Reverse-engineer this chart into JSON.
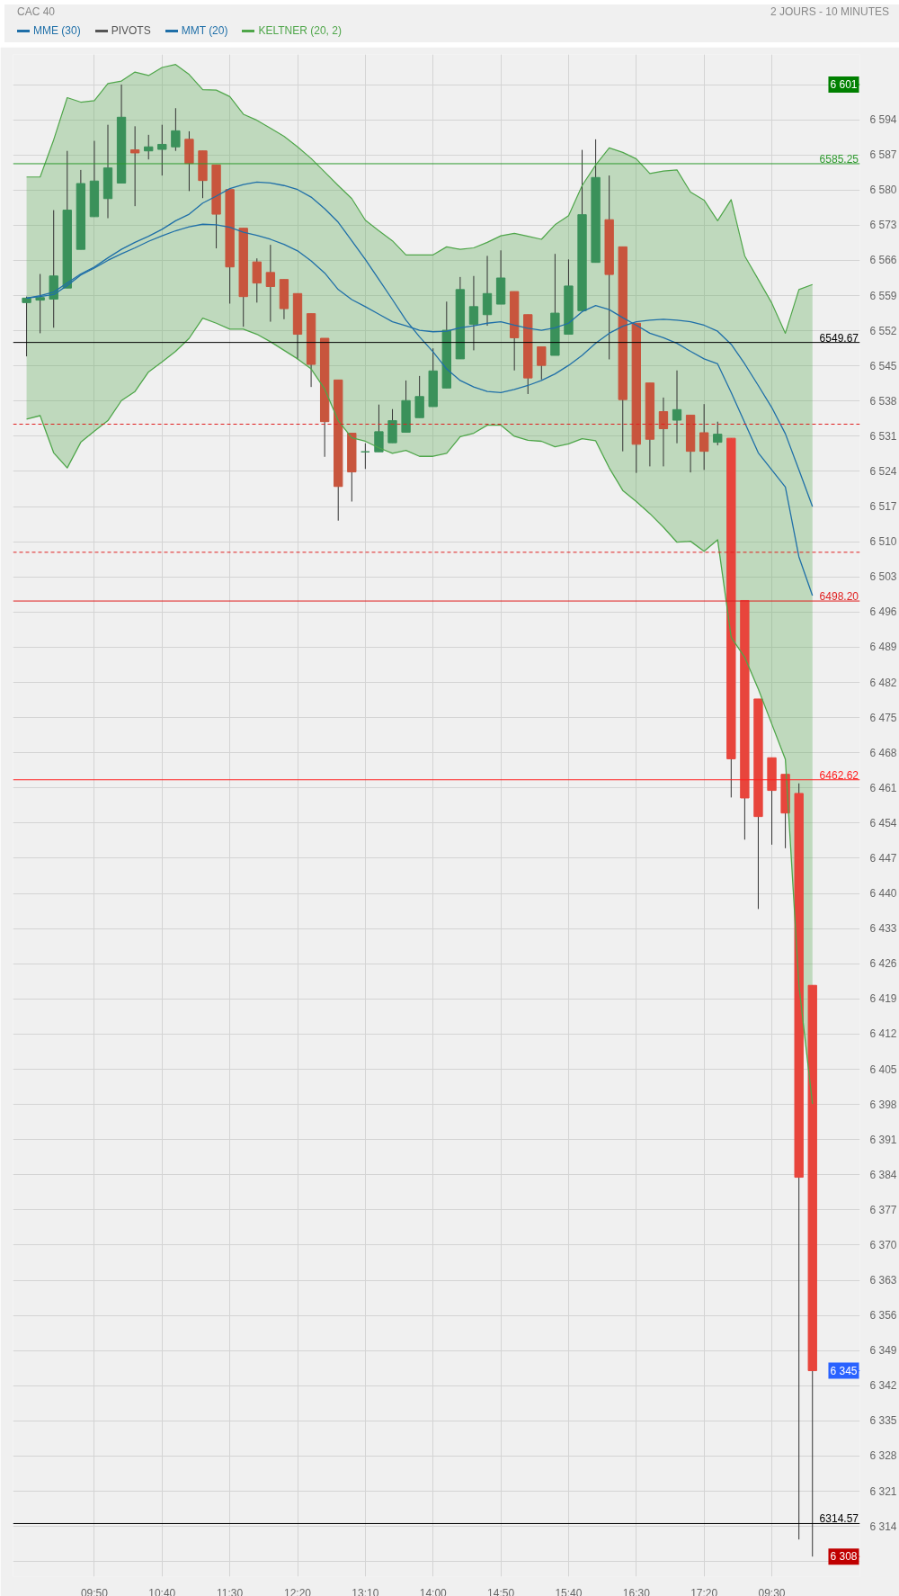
{
  "chart_data": {
    "type": "candlestick",
    "title": "CAC 40",
    "subtitle": "2 JOURS - 10 MINUTES",
    "categories": [
      null,
      null,
      null,
      null,
      null,
      "09:50",
      null,
      null,
      null,
      null,
      "10:40",
      null,
      null,
      null,
      null,
      "11:30",
      null,
      null,
      null,
      null,
      "12:20",
      null,
      null,
      null,
      null,
      "13:10",
      null,
      null,
      null,
      null,
      "14:00",
      null,
      null,
      null,
      null,
      "14:50",
      null,
      null,
      null,
      null,
      "15:40",
      null,
      null,
      null,
      null,
      "16:30",
      null,
      null,
      null,
      null,
      "17:20",
      null,
      null,
      null,
      null,
      "09:30",
      null,
      null,
      null
    ],
    "ohlc": [
      [
        6557.6,
        6558.8,
        6546.9,
        6558.5
      ],
      [
        6558.1,
        6563.3,
        6551.5,
        6558.6
      ],
      [
        6558.3,
        6576.0,
        6552.6,
        6562.9
      ],
      [
        6560.5,
        6587.8,
        6560.5,
        6576.0
      ],
      [
        6568.2,
        6584.0,
        6568.2,
        6581.3
      ],
      [
        6574.7,
        6589.8,
        6574.7,
        6581.8
      ],
      [
        6578.3,
        6593.0,
        6574.4,
        6584.4
      ],
      [
        6581.4,
        6601.0,
        6581.4,
        6594.5
      ],
      [
        6588.0,
        6592.7,
        6576.8,
        6587.4
      ],
      [
        6587.8,
        6591.0,
        6586.1,
        6588.6
      ],
      [
        6588.1,
        6593.0,
        6582.9,
        6589.1
      ],
      [
        6588.6,
        6596.3,
        6587.8,
        6591.8
      ],
      [
        6590.1,
        6591.7,
        6579.8,
        6585.3
      ],
      [
        6587.8,
        6587.8,
        6578.4,
        6581.9
      ],
      [
        6585.0,
        6585.0,
        6568.4,
        6575.2
      ],
      [
        6580.1,
        6580.1,
        6557.4,
        6564.7
      ],
      [
        6572.4,
        6572.4,
        6552.8,
        6558.8
      ],
      [
        6565.7,
        6566.4,
        6557.6,
        6561.5
      ],
      [
        6563.6,
        6569.1,
        6553.8,
        6560.8
      ],
      [
        6562.2,
        6562.2,
        6554.3,
        6556.4
      ],
      [
        6559.4,
        6559.4,
        6546.3,
        6551.3
      ],
      [
        6555.4,
        6555.4,
        6540.8,
        6545.3
      ],
      [
        6550.5,
        6550.5,
        6526.9,
        6533.9
      ],
      [
        6542.2,
        6542.2,
        6514.2,
        6521.0
      ],
      [
        6531.6,
        6531.6,
        6518.0,
        6523.9
      ],
      [
        6527.9,
        6529.6,
        6524.5,
        6527.9
      ],
      [
        6527.9,
        6537.3,
        6527.9,
        6531.9
      ],
      [
        6529.7,
        6536.4,
        6529.7,
        6534.1
      ],
      [
        6531.8,
        6542.1,
        6531.8,
        6538.1
      ],
      [
        6534.7,
        6543.0,
        6534.7,
        6538.9
      ],
      [
        6536.9,
        6548.5,
        6536.9,
        6544.0
      ],
      [
        6540.6,
        6557.8,
        6540.6,
        6552.1
      ],
      [
        6546.4,
        6562.7,
        6546.4,
        6560.2
      ],
      [
        6553.3,
        6562.9,
        6548.1,
        6556.8
      ],
      [
        6555.2,
        6566.9,
        6553.0,
        6559.4
      ],
      [
        6557.3,
        6568.0,
        6557.3,
        6562.5
      ],
      [
        6559.8,
        6559.8,
        6544.1,
        6550.6
      ],
      [
        6555.2,
        6555.2,
        6539.4,
        6542.6
      ],
      [
        6548.8,
        6548.8,
        6542.3,
        6545.1
      ],
      [
        6547.1,
        6567.3,
        6547.1,
        6555.5
      ],
      [
        6551.3,
        6566.2,
        6551.3,
        6560.9
      ],
      [
        6556.0,
        6588.0,
        6556.0,
        6575.1
      ],
      [
        6565.6,
        6590.1,
        6565.6,
        6582.5
      ],
      [
        6574.1,
        6582.9,
        6546.3,
        6563.2
      ],
      [
        6568.7,
        6568.7,
        6528.0,
        6538.3
      ],
      [
        6553.5,
        6553.5,
        6523.7,
        6529.4
      ],
      [
        6541.6,
        6541.6,
        6525.0,
        6530.4
      ],
      [
        6535.9,
        6538.7,
        6525.0,
        6532.5
      ],
      [
        6534.2,
        6544.1,
        6529.6,
        6536.3
      ],
      [
        6535.2,
        6535.2,
        6523.8,
        6528.0
      ],
      [
        6531.7,
        6537.4,
        6524.3,
        6528.0
      ],
      [
        6529.8,
        6533.9,
        6529.2,
        6531.4
      ],
      [
        6530.6,
        6530.6,
        6459.1,
        6466.8
      ],
      [
        6498.3,
        6498.3,
        6450.7,
        6459.0
      ],
      [
        6478.7,
        6478.7,
        6436.9,
        6455.3
      ],
      [
        6467.0,
        6467.0,
        6449.7,
        6460.5
      ],
      [
        6463.7,
        6463.7,
        6449.0,
        6456.0
      ],
      [
        6459.9,
        6461.9,
        6311.4,
        6383.5
      ],
      [
        6421.7,
        6421.7,
        6308.0,
        6345.0
      ]
    ],
    "colors": [
      "#3a915a",
      "#3a915a",
      "#3a915a",
      "#3a915a",
      "#3a915a",
      "#3a915a",
      "#3a915a",
      "#3a915a",
      "#c8553d",
      "#3a915a",
      "#3a915a",
      "#3a915a",
      "#c8553d",
      "#c8553d",
      "#c8553d",
      "#c8553d",
      "#c8553d",
      "#c8553d",
      "#c8553d",
      "#c8553d",
      "#c8553d",
      "#c8553d",
      "#c8553d",
      "#c8553d",
      "#c8553d",
      "#3a915a",
      "#3a915a",
      "#3a915a",
      "#3a915a",
      "#3a915a",
      "#3a915a",
      "#3a915a",
      "#3a915a",
      "#3a915a",
      "#3a915a",
      "#3a915a",
      "#c8553d",
      "#c8553d",
      "#c8553d",
      "#3a915a",
      "#3a915a",
      "#3a915a",
      "#3a915a",
      "#c8553d",
      "#c8553d",
      "#c8553d",
      "#c8553d",
      "#c8553d",
      "#3a915a",
      "#c8553d",
      "#c8553d",
      "#3a915a",
      "#e8453c",
      "#e8453c",
      "#e8453c",
      "#e8453c",
      "#e8453c",
      "#e8453c",
      "#e8453c"
    ],
    "series": [
      {
        "name": "MME (30)",
        "type": "line",
        "color": "#1f6fa8",
        "values": [
          6558.5,
          6558.8,
          6559.2,
          6561.0,
          6563.1,
          6564.5,
          6566.0,
          6567.3,
          6568.5,
          6569.8,
          6570.9,
          6571.9,
          6572.7,
          6573.2,
          6573.1,
          6572.6,
          6571.6,
          6571.0,
          6570.2,
          6569.2,
          6567.9,
          6565.9,
          6563.5,
          6560.2,
          6558.2,
          6556.8,
          6555.3,
          6553.8,
          6553.0,
          6552.1,
          6551.8,
          6551.9,
          6552.6,
          6553.0,
          6553.5,
          6553.8,
          6553.1,
          6552.5,
          6552.1,
          6552.6,
          6553.5,
          6555.8,
          6557.0,
          6556.2,
          6554.6,
          6553.1,
          6551.5,
          6550.6,
          6549.5,
          6547.9,
          6546.4,
          6545.4,
          6539.7,
          6533.7,
          6527.7,
          6524.3,
          6520.9,
          6507.0,
          6499.3
        ]
      },
      {
        "name": "MMT (20)",
        "type": "line",
        "color": "#1f6fa8",
        "values": [
          6558.5,
          6559.0,
          6559.7,
          6561.5,
          6563.3,
          6564.7,
          6566.5,
          6568.2,
          6569.6,
          6570.8,
          6572.2,
          6573.9,
          6575.2,
          6577.4,
          6578.8,
          6580.3,
          6581.1,
          6581.6,
          6581.4,
          6580.9,
          6580.1,
          6578.6,
          6576.3,
          6573.6,
          6569.9,
          6566.2,
          6562.2,
          6558.2,
          6554.1,
          6550.8,
          6547.8,
          6544.4,
          6542.1,
          6540.8,
          6539.9,
          6539.7,
          6540.3,
          6541.1,
          6542.1,
          6543.4,
          6545.1,
          6547.1,
          6549.5,
          6551.5,
          6552.9,
          6553.8,
          6554.1,
          6554.3,
          6554.1,
          6553.8,
          6553.1,
          6551.9,
          6549.3,
          6545.4,
          6541.1,
          6536.7,
          6531.5,
          6524.3,
          6517.0
        ]
      },
      {
        "name": "KELTNER (20, 2)",
        "type": "area",
        "color": "#4fa64a",
        "values": [
          6582.6,
          6582.6,
          6590.0,
          6598.4,
          6597.5,
          6597.8,
          6601.2,
          6601.7,
          6603.5,
          6602.8,
          6604.4,
          6605.0,
          6603.0,
          6600.0,
          6599.9,
          6598.6,
          6595.1,
          6593.9,
          6592.3,
          6590.7,
          6588.6,
          6586.3,
          6583.6,
          6580.9,
          6578.3,
          6574.0,
          6571.9,
          6569.9,
          6567.1,
          6567.1,
          6567.1,
          6568.7,
          6568.2,
          6568.5,
          6569.6,
          6570.9,
          6571.4,
          6570.8,
          6570.2,
          6573.1,
          6574.9,
          6580.9,
          6585.0,
          6588.4,
          6587.5,
          6586.2,
          6583.3,
          6583.8,
          6584.0,
          6579.6,
          6578.0,
          6573.9,
          6578.1,
          6566.9,
          6562.2,
          6557.5,
          6551.5,
          6560.2,
          6561.2
        ]
      },
      {
        "type": "line",
        "color": "#4fa64a",
        "values": [
          6534.4,
          6535.1,
          6527.7,
          6524.7,
          6529.8,
          6532.0,
          6534.1,
          6538.1,
          6539.9,
          6543.8,
          6545.8,
          6547.9,
          6550.5,
          6554.5,
          6553.5,
          6552.3,
          6552.3,
          6551.3,
          6549.8,
          6548.1,
          6546.4,
          6544.4,
          6540.4,
          6534.1,
          6530.7,
          6530.0,
          6528.7,
          6527.6,
          6528.2,
          6527.0,
          6527.0,
          6527.6,
          6530.9,
          6531.6,
          6533.2,
          6533.2,
          6531.0,
          6530.2,
          6530.0,
          6528.9,
          6529.5,
          6530.5,
          6530.1,
          6524.7,
          6520.2,
          6518.0,
          6515.6,
          6512.9,
          6509.9,
          6510.1,
          6508.1,
          6510.4,
          6491.0,
          6487.0,
          6480.7,
          6473.7,
          6466.7,
          6421.7,
          6398.1
        ]
      }
    ],
    "ylim": [
      6304,
      6607
    ],
    "yticks": [
      {
        "value": 6307,
        "label": null
      },
      {
        "value": 6314,
        "label": "6 314"
      },
      {
        "value": 6321,
        "label": "6 321"
      },
      {
        "value": 6328,
        "label": "6 328"
      },
      {
        "value": 6335,
        "label": "6 335"
      },
      {
        "value": 6342,
        "label": "6 342"
      },
      {
        "value": 6349,
        "label": "6 349"
      },
      {
        "value": 6356,
        "label": "6 356"
      },
      {
        "value": 6363,
        "label": "6 363"
      },
      {
        "value": 6370,
        "label": "6 370"
      },
      {
        "value": 6377,
        "label": "6 377"
      },
      {
        "value": 6384,
        "label": "6 384"
      },
      {
        "value": 6391,
        "label": "6 391"
      },
      {
        "value": 6398,
        "label": "6 398"
      },
      {
        "value": 6405,
        "label": "6 405"
      },
      {
        "value": 6412,
        "label": "6 412"
      },
      {
        "value": 6419,
        "label": "6 419"
      },
      {
        "value": 6426,
        "label": "6 426"
      },
      {
        "value": 6433,
        "label": "6 433"
      },
      {
        "value": 6440,
        "label": "6 440"
      },
      {
        "value": 6447,
        "label": "6 447"
      },
      {
        "value": 6454,
        "label": "6 454"
      },
      {
        "value": 6461,
        "label": "6 461"
      },
      {
        "value": 6468,
        "label": "6 468"
      },
      {
        "value": 6475,
        "label": "6 475"
      },
      {
        "value": 6482,
        "label": "6 482"
      },
      {
        "value": 6489,
        "label": "6 489"
      },
      {
        "value": 6496,
        "label": "6 496"
      },
      {
        "value": 6503,
        "label": "6 503"
      },
      {
        "value": 6510,
        "label": "6 510"
      },
      {
        "value": 6517,
        "label": "6 517"
      },
      {
        "value": 6524,
        "label": "6 524"
      },
      {
        "value": 6531,
        "label": "6 531"
      },
      {
        "value": 6538,
        "label": "6 538"
      },
      {
        "value": 6545,
        "label": "6 545"
      },
      {
        "value": 6552,
        "label": "6 552"
      },
      {
        "value": 6559,
        "label": "6 559"
      },
      {
        "value": 6566,
        "label": "6 566"
      },
      {
        "value": 6573,
        "label": "6 573"
      },
      {
        "value": 6580,
        "label": "6 580"
      },
      {
        "value": 6587,
        "label": "6 587"
      },
      {
        "value": 6594,
        "label": "6 594"
      },
      {
        "value": 6601,
        "label": null
      }
    ],
    "ref_lines": [
      {
        "axis": "y",
        "value": 6585.25,
        "label": "6585.25",
        "color": "#2e9a2e",
        "line_style": "solid"
      },
      {
        "axis": "y",
        "value": 6549.67,
        "label": "6549.67",
        "color": "#000000",
        "line_style": "solid"
      },
      {
        "axis": "y",
        "value": 6498.2,
        "label": "6498.20",
        "color": "#e02020",
        "line_style": "solid"
      },
      {
        "axis": "y",
        "value": 6462.62,
        "label": "6462.62",
        "color": "#ff2020",
        "line_style": "solid"
      },
      {
        "axis": "y",
        "value": 6314.57,
        "label": "6314.57",
        "color": "#000000",
        "line_style": "solid"
      },
      {
        "axis": "y",
        "value": 6601,
        "label": "6 601",
        "color": "#008000"
      },
      {
        "axis": "y",
        "value": 6345,
        "label": "6 345",
        "color": "#2962ff"
      },
      {
        "axis": "y",
        "value": 6308,
        "label": "6 308",
        "color": "#c00000"
      },
      {
        "axis": "y",
        "value": 6507.9,
        "color": "#e02020",
        "line_style": "dashed"
      },
      {
        "axis": "y",
        "value": 6533.4,
        "color": "#e02020",
        "line_style": "dashed"
      }
    ],
    "annotations": [
      "PIVOTS"
    ],
    "grid": true,
    "legend": "top left"
  }
}
